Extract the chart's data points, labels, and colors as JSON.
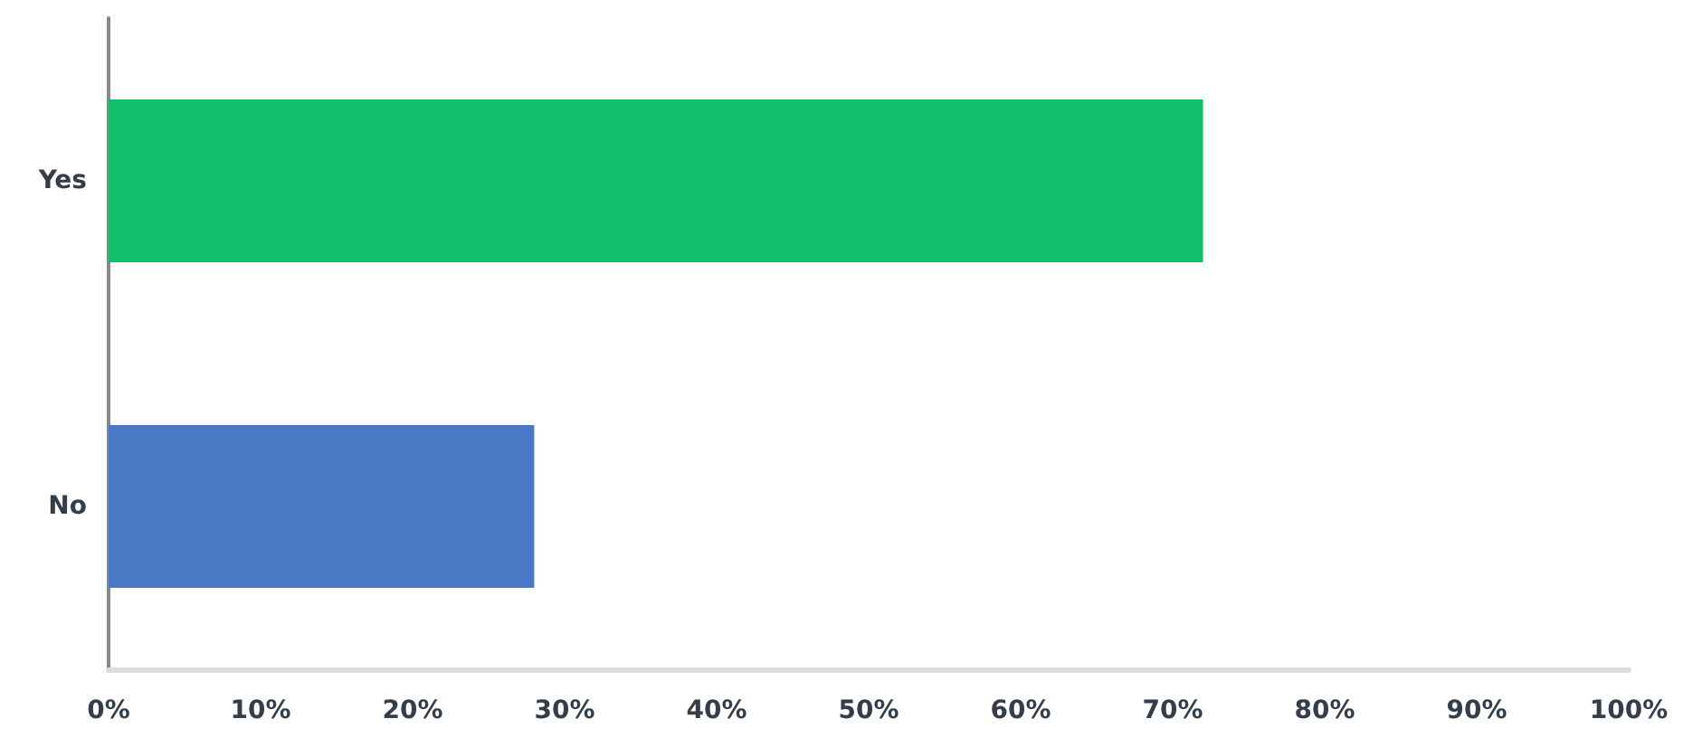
{
  "chart_data": {
    "type": "bar",
    "orientation": "horizontal",
    "categories": [
      "Yes",
      "No"
    ],
    "values": [
      72,
      28
    ],
    "colors": [
      "#12bf6b",
      "#4a78c4"
    ],
    "xlim": [
      0,
      100
    ],
    "xticks": [
      {
        "value": 0,
        "label": "0%"
      },
      {
        "value": 10,
        "label": "10%"
      },
      {
        "value": 20,
        "label": "20%"
      },
      {
        "value": 30,
        "label": "30%"
      },
      {
        "value": 40,
        "label": "40%"
      },
      {
        "value": 50,
        "label": "50%"
      },
      {
        "value": 60,
        "label": "60%"
      },
      {
        "value": 70,
        "label": "70%"
      },
      {
        "value": 80,
        "label": "80%"
      },
      {
        "value": 90,
        "label": "90%"
      },
      {
        "value": 100,
        "label": "100%"
      }
    ],
    "grid": false
  }
}
